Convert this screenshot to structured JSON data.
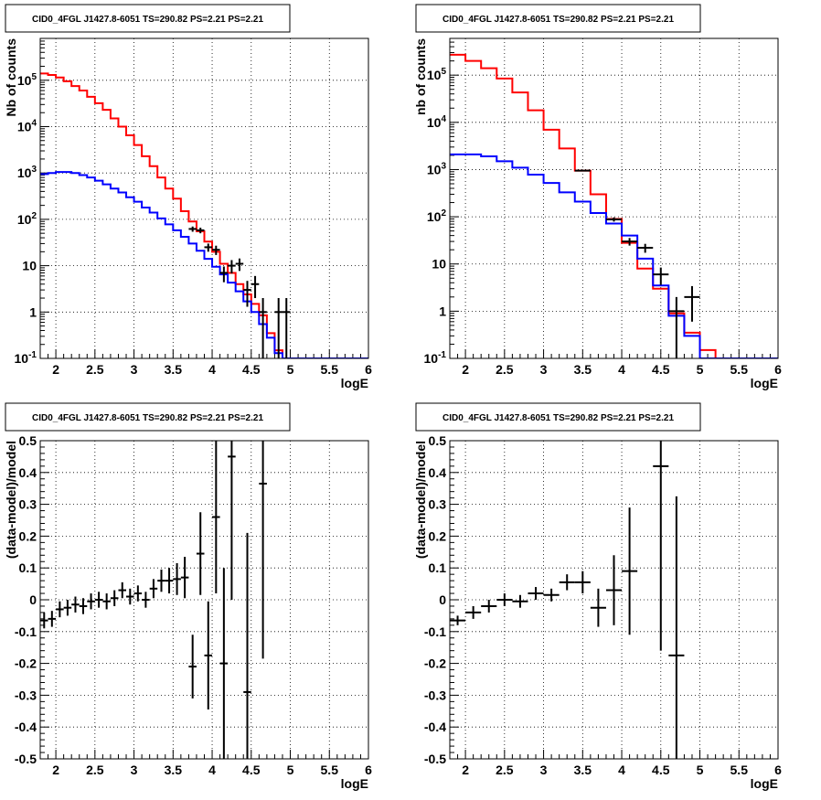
{
  "chart_data": [
    {
      "type": "histogram",
      "panel": "top-left",
      "title": "CID0_4FGL J1427.8-6051 TS=290.82 PS=2.21 PS=2.21",
      "xlabel": "logE",
      "ylabel": "Nb of counts",
      "xlim": [
        1.8,
        6.0
      ],
      "ylim": [
        0.1,
        800000
      ],
      "ylog": true,
      "grid": true,
      "x_ticks": [
        "2",
        "2.5",
        "3",
        "3.5",
        "4",
        "4.5",
        "5",
        "5.5",
        "6"
      ],
      "y_ticks": [
        {
          "v": 0.1,
          "b": "10",
          "e": "-1"
        },
        {
          "v": 1,
          "b": "1",
          "e": ""
        },
        {
          "v": 10,
          "b": "10",
          "e": ""
        },
        {
          "v": 100,
          "b": "10",
          "e": "2"
        },
        {
          "v": 1000,
          "b": "10",
          "e": "3"
        },
        {
          "v": 10000,
          "b": "10",
          "e": "4"
        },
        {
          "v": 100000,
          "b": "10",
          "e": "5"
        }
      ],
      "series": [
        {
          "color": "#ff0000",
          "style": "step",
          "bin_width": 0.1,
          "x": [
            1.8,
            1.9,
            2.0,
            2.1,
            2.2,
            2.3,
            2.4,
            2.5,
            2.6,
            2.7,
            2.8,
            2.9,
            3.0,
            3.1,
            3.2,
            3.3,
            3.4,
            3.5,
            3.6,
            3.7,
            3.8,
            3.9,
            4.0,
            4.1,
            4.2,
            4.3,
            4.4,
            4.5,
            4.6,
            4.7,
            4.8,
            4.9,
            5.0,
            5.1,
            5.2,
            5.3,
            5.4,
            5.5,
            5.6,
            5.7,
            5.8,
            5.9
          ],
          "y": [
            140000,
            130000,
            115000,
            95000,
            75000,
            60000,
            44000,
            32000,
            23000,
            15000,
            10000,
            6500,
            4000,
            2300,
            1400,
            800,
            460,
            280,
            150,
            90,
            55,
            33,
            20,
            11,
            7,
            4,
            2.4,
            1.5,
            0.85,
            0.35,
            0.15,
            0.09,
            0.05,
            0.05,
            0.05,
            0.05,
            0.05,
            0.05,
            0.05,
            0.05,
            0.05,
            0.05
          ]
        },
        {
          "color": "#0000ff",
          "style": "step",
          "bin_width": 0.1,
          "x": [
            1.8,
            1.9,
            2.0,
            2.1,
            2.2,
            2.3,
            2.4,
            2.5,
            2.6,
            2.7,
            2.8,
            2.9,
            3.0,
            3.1,
            3.2,
            3.3,
            3.4,
            3.5,
            3.6,
            3.7,
            3.8,
            3.9,
            4.0,
            4.1,
            4.2,
            4.3,
            4.4,
            4.5,
            4.6,
            4.7,
            4.8,
            4.9,
            5.0,
            5.1,
            5.2,
            5.3,
            5.4,
            5.5,
            5.6,
            5.7,
            5.8,
            5.9
          ],
          "y": [
            950,
            1000,
            1050,
            1050,
            1000,
            900,
            800,
            680,
            570,
            460,
            380,
            300,
            240,
            180,
            140,
            105,
            78,
            58,
            42,
            30,
            21,
            14,
            9.5,
            6.5,
            4.3,
            2.8,
            1.7,
            1.0,
            0.55,
            0.28,
            0.13,
            0.05,
            0.05,
            0.05,
            0.05,
            0.05,
            0.05,
            0.05,
            0.05,
            0.05,
            0.05,
            0.05
          ]
        },
        {
          "color": "#000000",
          "style": "errorbars",
          "bin_width": 0.1,
          "x": [
            3.75,
            3.85,
            3.95,
            4.05,
            4.15,
            4.25,
            4.35,
            4.45,
            4.55,
            4.65,
            4.75,
            4.85,
            4.95
          ],
          "y": [
            62,
            58,
            25,
            22,
            7,
            10,
            11,
            3,
            4,
            1,
            0,
            1,
            1
          ],
          "err": [
            8,
            8,
            5,
            5,
            2.6,
            3.2,
            3.3,
            1.7,
            2,
            1,
            0,
            1,
            1
          ]
        }
      ]
    },
    {
      "type": "histogram",
      "panel": "top-right",
      "title": "CID0_4FGL J1427.8-6051 TS=290.82 PS=2.21 PS=2.21",
      "xlabel": "logE",
      "ylabel": "nb of counts",
      "xlim": [
        1.8,
        6.0
      ],
      "ylim": [
        0.1,
        600000
      ],
      "ylog": true,
      "grid": true,
      "x_ticks": [
        "2",
        "2.5",
        "3",
        "3.5",
        "4",
        "4.5",
        "5",
        "5.5",
        "6"
      ],
      "y_ticks": [
        {
          "v": 0.1,
          "b": "10",
          "e": "-1"
        },
        {
          "v": 1,
          "b": "1",
          "e": ""
        },
        {
          "v": 10,
          "b": "10",
          "e": ""
        },
        {
          "v": 100,
          "b": "10",
          "e": "2"
        },
        {
          "v": 1000,
          "b": "10",
          "e": "3"
        },
        {
          "v": 10000,
          "b": "10",
          "e": "4"
        },
        {
          "v": 100000,
          "b": "10",
          "e": "5"
        }
      ],
      "series": [
        {
          "color": "#ff0000",
          "style": "step",
          "bin_width": 0.2,
          "x": [
            1.8,
            2.0,
            2.2,
            2.4,
            2.6,
            2.8,
            3.0,
            3.2,
            3.4,
            3.6,
            3.8,
            4.0,
            4.2,
            4.4,
            4.6,
            4.8,
            5.0,
            5.2,
            5.4,
            5.6,
            5.8
          ],
          "y": [
            270000,
            200000,
            140000,
            85000,
            43000,
            18000,
            7000,
            2800,
            950,
            300,
            90,
            28,
            8,
            3,
            0.9,
            0.35,
            0.15,
            0.05,
            0.05,
            0.05,
            0.05
          ]
        },
        {
          "color": "#0000ff",
          "style": "step",
          "bin_width": 0.2,
          "x": [
            1.8,
            2.0,
            2.2,
            2.4,
            2.6,
            2.8,
            3.0,
            3.2,
            3.4,
            3.6,
            3.8,
            4.0,
            4.2,
            4.4,
            4.6,
            4.8,
            5.0,
            5.2,
            5.4,
            5.6,
            5.8
          ],
          "y": [
            2100,
            2100,
            1900,
            1500,
            1100,
            780,
            520,
            330,
            210,
            120,
            72,
            40,
            13,
            3.5,
            0.8,
            0.3,
            0.05,
            0.05,
            0.05,
            0.05,
            0.05
          ]
        },
        {
          "color": "#000000",
          "style": "errorbars",
          "bin_width": 0.2,
          "x": [
            3.5,
            3.9,
            4.1,
            4.3,
            4.5,
            4.7,
            4.9
          ],
          "y": [
            950,
            88,
            30,
            22,
            6,
            1,
            2
          ],
          "err": [
            30,
            9,
            5.5,
            4.7,
            2.4,
            1,
            1.4
          ]
        }
      ]
    },
    {
      "type": "errorbars",
      "panel": "bottom-left",
      "title": "CID0_4FGL J1427.8-6051 TS=290.82 PS=2.21 PS=2.21",
      "xlabel": "logE",
      "ylabel": "(data-model)/model",
      "xlim": [
        1.8,
        6.0
      ],
      "ylim": [
        -0.5,
        0.5
      ],
      "ylog": false,
      "grid": true,
      "x_ticks": [
        "2",
        "2.5",
        "3",
        "3.5",
        "4",
        "4.5",
        "5",
        "5.5",
        "6"
      ],
      "y_ticks": [
        "-0.5",
        "-0.4",
        "-0.3",
        "-0.2",
        "-0.1",
        "0",
        "0.1",
        "0.2",
        "0.3",
        "0.4",
        "0.5"
      ],
      "series": [
        {
          "color": "#000000",
          "style": "errorbars",
          "bin_width": 0.1,
          "x": [
            1.85,
            1.95,
            2.05,
            2.15,
            2.25,
            2.35,
            2.45,
            2.55,
            2.65,
            2.75,
            2.85,
            2.95,
            3.05,
            3.15,
            3.25,
            3.35,
            3.45,
            3.55,
            3.65,
            3.75,
            3.85,
            3.95,
            4.05,
            4.15,
            4.25,
            4.45,
            4.65
          ],
          "y": [
            -0.065,
            -0.06,
            -0.03,
            -0.025,
            -0.015,
            -0.02,
            -0.005,
            0.0,
            -0.005,
            0.005,
            0.03,
            0.01,
            0.02,
            0.0,
            0.035,
            0.06,
            0.06,
            0.065,
            0.07,
            -0.21,
            0.145,
            -0.175,
            0.26,
            -0.2,
            0.45,
            -0.29,
            0.365
          ],
          "err": [
            0.025,
            0.025,
            0.025,
            0.025,
            0.025,
            0.025,
            0.025,
            0.025,
            0.025,
            0.025,
            0.025,
            0.025,
            0.025,
            0.025,
            0.03,
            0.035,
            0.04,
            0.05,
            0.065,
            0.1,
            0.13,
            0.17,
            0.24,
            0.3,
            0.45,
            0.5,
            0.55
          ]
        }
      ]
    },
    {
      "type": "errorbars",
      "panel": "bottom-right",
      "title": "CID0_4FGL J1427.8-6051 TS=290.82 PS=2.21 PS=2.21",
      "xlabel": "logE",
      "ylabel": "(data-model)/model",
      "xlim": [
        1.8,
        6.0
      ],
      "ylim": [
        -0.5,
        0.5
      ],
      "ylog": false,
      "grid": true,
      "x_ticks": [
        "2",
        "2.5",
        "3",
        "3.5",
        "4",
        "4.5",
        "5",
        "5.5",
        "6"
      ],
      "y_ticks": [
        "-0.5",
        "-0.4",
        "-0.3",
        "-0.2",
        "-0.1",
        "0",
        "0.1",
        "0.2",
        "0.3",
        "0.4",
        "0.5"
      ],
      "series": [
        {
          "color": "#000000",
          "style": "errorbars",
          "bin_width": 0.2,
          "x": [
            1.9,
            2.1,
            2.3,
            2.5,
            2.7,
            2.9,
            3.1,
            3.3,
            3.5,
            3.7,
            3.9,
            4.1,
            4.5,
            4.7
          ],
          "y": [
            -0.065,
            -0.04,
            -0.02,
            0.0,
            -0.005,
            0.02,
            0.015,
            0.055,
            0.055,
            -0.025,
            0.03,
            0.09,
            0.42,
            -0.175
          ],
          "err": [
            0.015,
            0.02,
            0.02,
            0.02,
            0.02,
            0.02,
            0.02,
            0.025,
            0.035,
            0.06,
            0.11,
            0.2,
            0.58,
            0.5
          ]
        }
      ]
    }
  ]
}
